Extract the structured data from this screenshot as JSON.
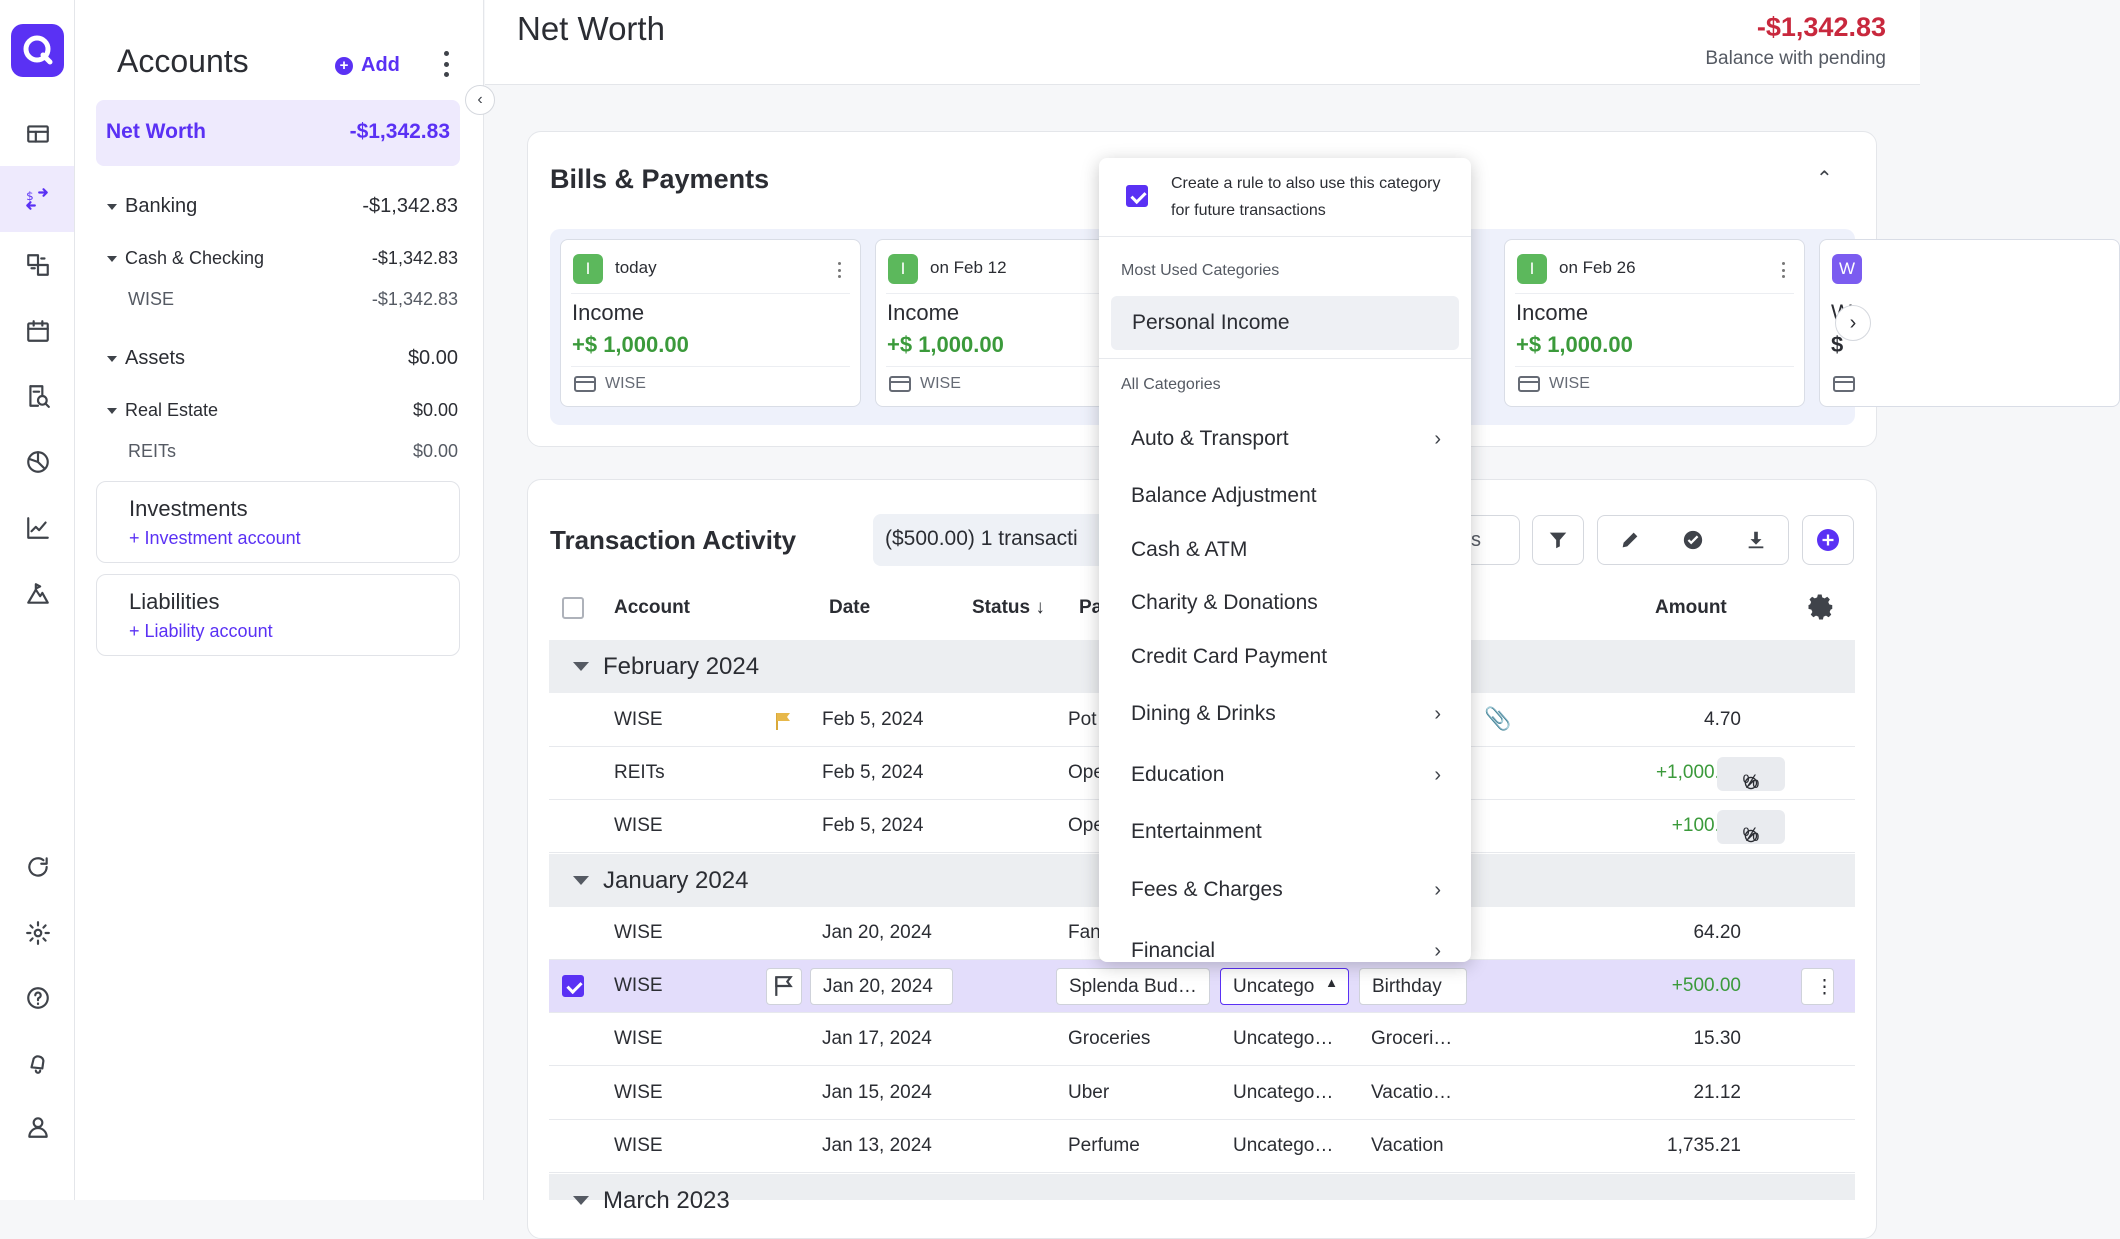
{
  "rail": {
    "icons": [
      "dashboard-icon",
      "transactions-icon",
      "budget-icon",
      "calendar-icon",
      "reports-icon",
      "planning-icon",
      "investments-chart-icon",
      "goals-icon",
      "refresh-icon",
      "settings-icon",
      "help-icon",
      "notifications-icon",
      "profile-icon"
    ]
  },
  "accounts": {
    "title": "Accounts",
    "add_label": "Add",
    "net_worth_label": "Net Worth",
    "net_worth_value": "-$1,342.83",
    "banking_label": "Banking",
    "banking_value": "-$1,342.83",
    "cash_label": "Cash & Checking",
    "cash_value": "-$1,342.83",
    "wise_label": "WISE",
    "wise_value": "-$1,342.83",
    "assets_label": "Assets",
    "assets_value": "$0.00",
    "realestate_label": "Real Estate",
    "realestate_value": "$0.00",
    "reits_label": "REITs",
    "reits_value": "$0.00",
    "investments_title": "Investments",
    "investments_link": "+ Investment account",
    "liabilities_title": "Liabilities",
    "liabilities_link": "+ Liability account"
  },
  "header": {
    "title": "Net Worth",
    "balance": "-$1,342.83",
    "balance_label": "Balance with pending"
  },
  "bills": {
    "title": "Bills & Payments",
    "cards": [
      {
        "badge": "I",
        "when": "today",
        "name": "Income",
        "amount": "+$ 1,000.00",
        "account": "WISE"
      },
      {
        "badge": "I",
        "when": "on Feb 12",
        "name": "Income",
        "amount": "+$ 1,000.00",
        "account": "WISE"
      },
      {
        "badge": "I",
        "when": "on Feb 26",
        "name": "Income",
        "amount": "+$ 1,000.00",
        "account": "WISE"
      },
      {
        "badge": "W",
        "when": "",
        "name": "W",
        "amount": "$",
        "account": ""
      }
    ]
  },
  "transactions": {
    "title": "Transaction Activity",
    "summary": "($500.00) 1 transacti",
    "search_tail": "s",
    "headers": {
      "account": "Account",
      "date": "Date",
      "status": "Status",
      "payee": "Pa",
      "amount": "Amount"
    },
    "groups": [
      "February 2024",
      "January 2024",
      "March 2023"
    ],
    "rows": [
      {
        "account": "WISE",
        "date": "Feb 5, 2024",
        "payee": "Pot",
        "amount": "4.70"
      },
      {
        "account": "REITs",
        "date": "Feb 5, 2024",
        "payee": "Ope",
        "amount": "+1,000.00"
      },
      {
        "account": "WISE",
        "date": "Feb 5, 2024",
        "payee": "Ope",
        "amount": "+100.00"
      },
      {
        "account": "WISE",
        "date": "Jan 20, 2024",
        "payee": "Fan",
        "amount": "64.20"
      },
      {
        "account": "WISE",
        "date": "Jan 20, 2024",
        "payee": "Splenda Bud…",
        "category": "Uncatego",
        "tags": "Birthday",
        "amount": "+500.00"
      },
      {
        "account": "WISE",
        "date": "Jan 17, 2024",
        "payee": "Groceries",
        "category": "Uncatego…",
        "tags": "Groceri…",
        "amount": "15.30"
      },
      {
        "account": "WISE",
        "date": "Jan 15, 2024",
        "payee": "Uber",
        "category": "Uncatego…",
        "tags": "Vacatio…",
        "amount": "21.12"
      },
      {
        "account": "WISE",
        "date": "Jan 13, 2024",
        "payee": "Perfume",
        "category": "Uncatego…",
        "tags": "Vacation",
        "amount": "1,735.21"
      }
    ]
  },
  "dropdown": {
    "rule_text": "Create a rule to also use this category for future transactions",
    "most_used_header": "Most Used Categories",
    "most_used": "Personal Income",
    "all_header": "All Categories",
    "items": [
      "Auto & Transport",
      "Balance Adjustment",
      "Cash & ATM",
      "Charity & Donations",
      "Credit Card Payment",
      "Dining & Drinks",
      "Education",
      "Entertainment",
      "Fees & Charges",
      "Financial"
    ]
  },
  "colors": {
    "accent": "#5a31f4",
    "negative": "#c8283d",
    "positive": "#3b9a3b"
  }
}
